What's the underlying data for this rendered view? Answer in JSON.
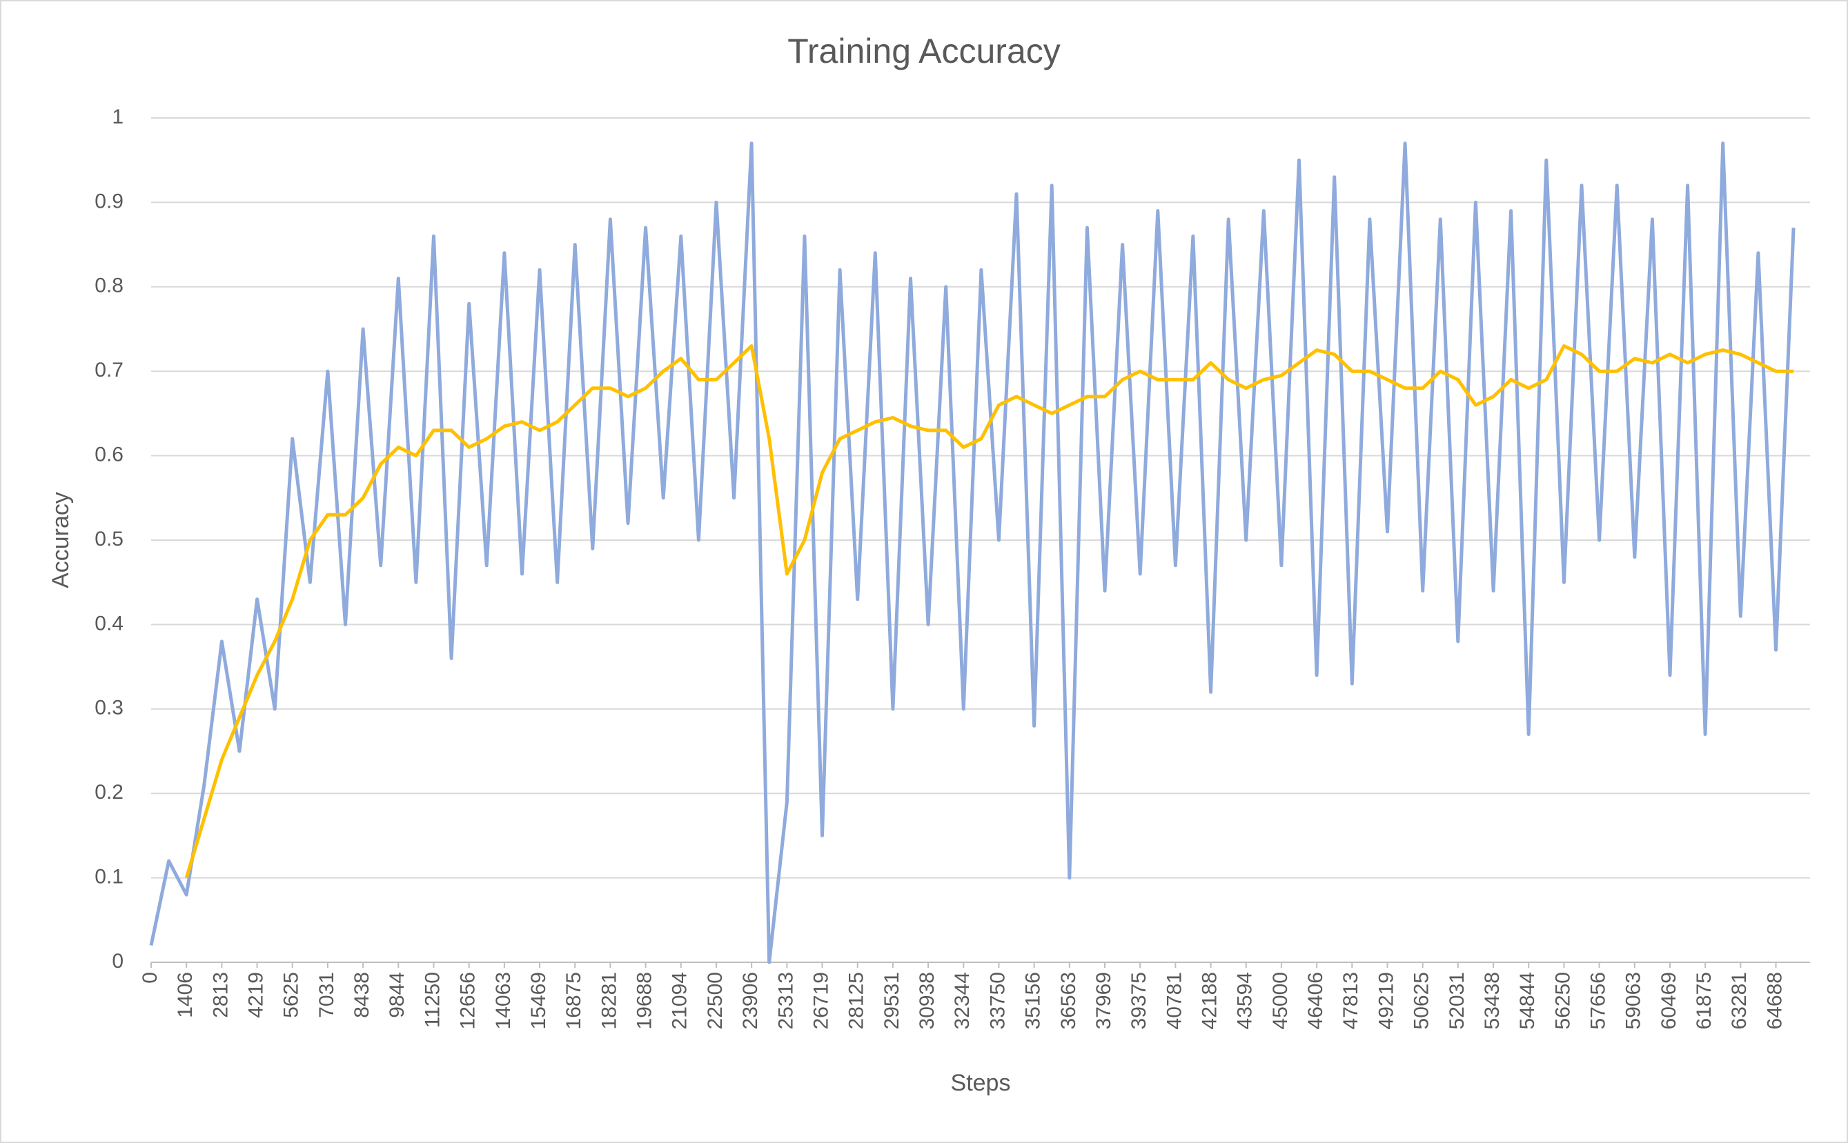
{
  "chart_data": {
    "type": "line",
    "title": "Training Accuracy",
    "x_label": "Steps",
    "y_label": "Accuracy",
    "x": [
      0,
      703,
      1406,
      2109,
      2813,
      3516,
      4219,
      4922,
      5625,
      6328,
      7031,
      7734,
      8438,
      9141,
      9844,
      10547,
      11250,
      11953,
      12656,
      13359,
      14063,
      14766,
      15469,
      16172,
      16875,
      17578,
      18281,
      18984,
      19688,
      20391,
      21094,
      21797,
      22500,
      23203,
      23906,
      24609,
      25313,
      26016,
      26719,
      27422,
      28125,
      28828,
      29531,
      30234,
      30938,
      31641,
      32344,
      33047,
      33750,
      34453,
      35156,
      35859,
      36563,
      37266,
      37969,
      38672,
      39375,
      40078,
      40781,
      41484,
      42188,
      42891,
      43594,
      44297,
      45000,
      45703,
      46406,
      47109,
      47813,
      48516,
      49219,
      49922,
      50625,
      51328,
      52031,
      52734,
      53438,
      54141,
      54844,
      55547,
      56250,
      56953,
      57656,
      58359,
      59063,
      59766,
      60469,
      61172,
      61875,
      62578,
      63281,
      63984,
      64688,
      65391
    ],
    "series": [
      {
        "color": "#8faadc",
        "values": [
          0.02,
          0.12,
          0.08,
          0.21,
          0.38,
          0.25,
          0.43,
          0.3,
          0.62,
          0.45,
          0.7,
          0.4,
          0.75,
          0.47,
          0.81,
          0.45,
          0.86,
          0.36,
          0.78,
          0.47,
          0.84,
          0.46,
          0.82,
          0.45,
          0.85,
          0.49,
          0.88,
          0.52,
          0.87,
          0.55,
          0.86,
          0.5,
          0.9,
          0.55,
          0.97,
          0.0,
          0.19,
          0.86,
          0.15,
          0.82,
          0.43,
          0.84,
          0.3,
          0.81,
          0.4,
          0.8,
          0.3,
          0.82,
          0.5,
          0.91,
          0.28,
          0.92,
          0.1,
          0.87,
          0.44,
          0.85,
          0.46,
          0.89,
          0.47,
          0.86,
          0.32,
          0.88,
          0.5,
          0.89,
          0.47,
          0.95,
          0.34,
          0.93,
          0.33,
          0.88,
          0.51,
          0.97,
          0.44,
          0.88,
          0.38,
          0.9,
          0.44,
          0.89,
          0.27,
          0.95,
          0.45,
          0.92,
          0.5,
          0.92,
          0.48,
          0.88,
          0.34,
          0.92,
          0.27,
          0.97,
          0.41,
          0.84,
          0.37,
          0.87
        ]
      },
      {
        "color": "#ffc000",
        "values": [
          null,
          null,
          0.1,
          0.17,
          0.24,
          0.29,
          0.34,
          0.38,
          0.43,
          0.5,
          0.53,
          0.53,
          0.55,
          0.59,
          0.61,
          0.6,
          0.63,
          0.63,
          0.61,
          0.62,
          0.635,
          0.64,
          0.63,
          0.64,
          0.66,
          0.68,
          0.68,
          0.67,
          0.68,
          0.7,
          0.715,
          0.69,
          0.69,
          0.71,
          0.73,
          0.62,
          0.46,
          0.5,
          0.58,
          0.62,
          0.63,
          0.64,
          0.645,
          0.635,
          0.63,
          0.63,
          0.61,
          0.62,
          0.66,
          0.67,
          0.66,
          0.65,
          0.66,
          0.67,
          0.67,
          0.69,
          0.7,
          0.69,
          0.69,
          0.69,
          0.71,
          0.69,
          0.68,
          0.69,
          0.695,
          0.71,
          0.725,
          0.72,
          0.7,
          0.7,
          0.69,
          0.68,
          0.68,
          0.7,
          0.69,
          0.66,
          0.67,
          0.69,
          0.68,
          0.69,
          0.73,
          0.72,
          0.7,
          0.7,
          0.715,
          0.71,
          0.72,
          0.71,
          0.72,
          0.725,
          0.72,
          0.71,
          0.7,
          0.7
        ]
      }
    ],
    "xlim": [
      0,
      66047
    ],
    "xticks": [
      0,
      1406,
      2813,
      4219,
      5625,
      7031,
      8438,
      9844,
      11250,
      12656,
      14063,
      15469,
      16875,
      18281,
      19688,
      21094,
      22500,
      23906,
      25313,
      26719,
      28125,
      29531,
      30938,
      32344,
      33750,
      35156,
      36563,
      37969,
      39375,
      40781,
      42188,
      43594,
      45000,
      46406,
      47813,
      49219,
      50625,
      52031,
      53438,
      54844,
      56250,
      57656,
      59063,
      60469,
      61875,
      63281,
      64688
    ],
    "ylim": [
      0,
      1
    ],
    "yticks": [
      0,
      0.1,
      0.2,
      0.3,
      0.4,
      0.5,
      0.6,
      0.7,
      0.8,
      0.9,
      1
    ],
    "grid": true
  }
}
